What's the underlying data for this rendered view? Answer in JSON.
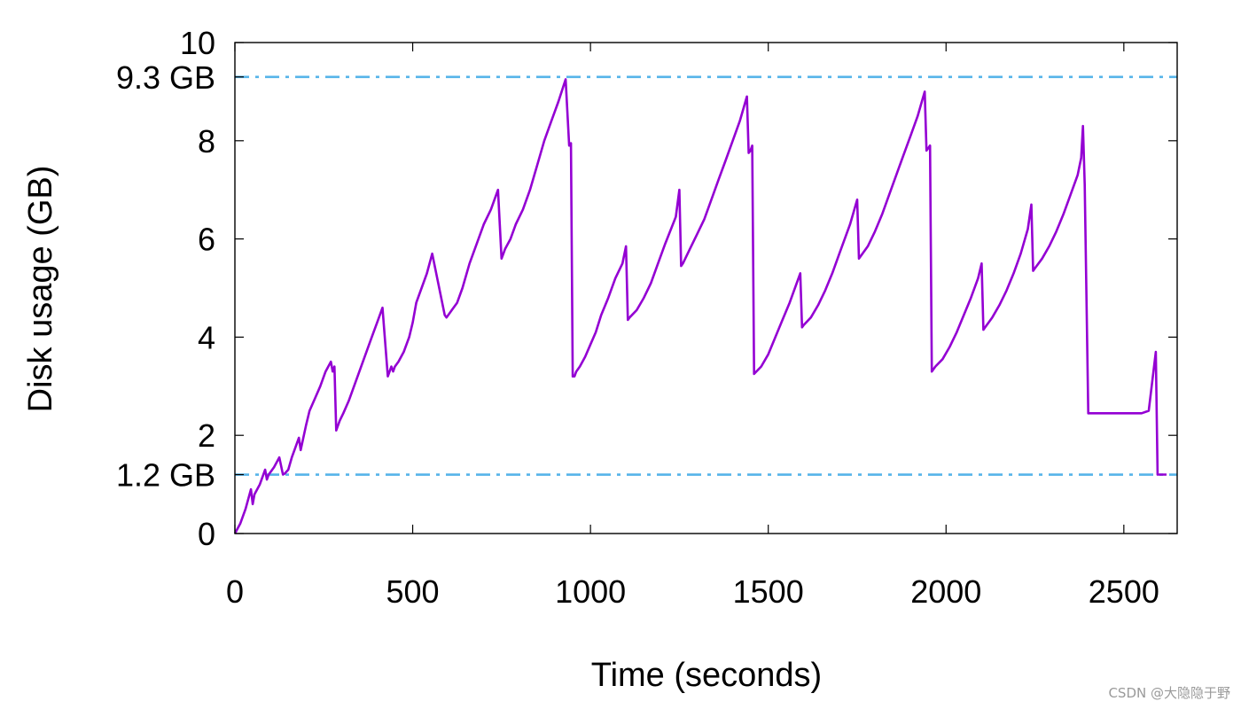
{
  "chart_data": {
    "type": "line",
    "xlabel": "Time (seconds)",
    "ylabel": "Disk usage (GB)",
    "xlim": [
      0,
      2650
    ],
    "ylim": [
      0,
      10
    ],
    "x_ticks": [
      0,
      500,
      1000,
      1500,
      2000,
      2500
    ],
    "y_ticks": [
      0,
      2,
      4,
      6,
      8,
      10
    ],
    "grid": false,
    "colors": {
      "series": "#9400d3",
      "reference_lines": "#56b4e9",
      "axis": "#000000"
    },
    "reference_lines": [
      {
        "label": "9.3 GB",
        "y": 9.3
      },
      {
        "label": "1.2 GB",
        "y": 1.2
      }
    ],
    "series": [
      {
        "x": [
          0,
          15,
          30,
          45,
          50,
          55,
          70,
          85,
          90,
          95,
          110,
          125,
          135,
          140,
          150,
          160,
          170,
          180,
          185,
          200,
          210,
          225,
          240,
          255,
          270,
          275,
          280,
          285,
          290,
          295,
          305,
          320,
          335,
          350,
          365,
          380,
          390,
          400,
          415,
          430,
          435,
          440,
          445,
          450,
          460,
          475,
          490,
          500,
          510,
          525,
          540,
          555,
          590,
          595,
          600,
          610,
          625,
          640,
          660,
          680,
          700,
          720,
          740,
          750,
          755,
          760,
          775,
          790,
          810,
          830,
          850,
          870,
          890,
          910,
          930,
          940,
          945,
          950,
          955,
          960,
          970,
          985,
          1000,
          1015,
          1030,
          1050,
          1070,
          1090,
          1100,
          1105,
          1110,
          1130,
          1150,
          1170,
          1190,
          1210,
          1240,
          1250,
          1255,
          1260,
          1280,
          1300,
          1320,
          1340,
          1360,
          1380,
          1400,
          1420,
          1440,
          1445,
          1450,
          1455,
          1460,
          1480,
          1500,
          1520,
          1540,
          1560,
          1590,
          1595,
          1600,
          1620,
          1640,
          1660,
          1680,
          1700,
          1730,
          1750,
          1755,
          1760,
          1780,
          1800,
          1820,
          1840,
          1860,
          1880,
          1900,
          1920,
          1940,
          1945,
          1950,
          1955,
          1960,
          1970,
          1990,
          2010,
          2030,
          2050,
          2070,
          2090,
          2100,
          2105,
          2110,
          2130,
          2150,
          2170,
          2190,
          2210,
          2230,
          2240,
          2245,
          2250,
          2270,
          2290,
          2310,
          2330,
          2350,
          2370,
          2380,
          2385,
          2390,
          2400,
          2450,
          2500,
          2550,
          2570,
          2590,
          2595,
          2600,
          2620
        ],
        "y": [
          0,
          0.2,
          0.5,
          0.9,
          0.6,
          0.8,
          1.0,
          1.3,
          1.1,
          1.2,
          1.35,
          1.55,
          1.2,
          1.22,
          1.3,
          1.55,
          1.75,
          1.95,
          1.7,
          2.2,
          2.5,
          2.75,
          3.0,
          3.3,
          3.5,
          3.3,
          3.4,
          2.1,
          2.2,
          2.3,
          2.45,
          2.7,
          3.0,
          3.3,
          3.6,
          3.9,
          4.1,
          4.3,
          4.6,
          3.2,
          3.3,
          3.4,
          3.3,
          3.4,
          3.5,
          3.7,
          4.0,
          4.3,
          4.7,
          5.0,
          5.3,
          5.7,
          4.45,
          4.4,
          4.45,
          4.55,
          4.7,
          5.0,
          5.5,
          5.9,
          6.3,
          6.6,
          7.0,
          5.6,
          5.7,
          5.8,
          6.0,
          6.3,
          6.6,
          7.0,
          7.5,
          8.0,
          8.4,
          8.8,
          9.25,
          7.9,
          7.95,
          3.2,
          3.2,
          3.3,
          3.4,
          3.6,
          3.85,
          4.1,
          4.45,
          4.8,
          5.2,
          5.5,
          5.85,
          4.35,
          4.4,
          4.55,
          4.8,
          5.1,
          5.5,
          5.9,
          6.45,
          7.0,
          5.45,
          5.5,
          5.8,
          6.1,
          6.4,
          6.8,
          7.2,
          7.6,
          8.0,
          8.4,
          8.9,
          7.75,
          7.8,
          7.9,
          3.25,
          3.4,
          3.65,
          4.0,
          4.35,
          4.7,
          5.3,
          4.2,
          4.25,
          4.4,
          4.65,
          4.95,
          5.3,
          5.7,
          6.3,
          6.8,
          5.6,
          5.65,
          5.85,
          6.15,
          6.5,
          6.9,
          7.3,
          7.7,
          8.1,
          8.5,
          9.0,
          7.8,
          7.85,
          7.9,
          3.3,
          3.4,
          3.55,
          3.8,
          4.1,
          4.45,
          4.8,
          5.2,
          5.5,
          4.15,
          4.2,
          4.4,
          4.65,
          4.95,
          5.3,
          5.7,
          6.2,
          6.7,
          5.35,
          5.4,
          5.6,
          5.85,
          6.15,
          6.5,
          6.9,
          7.3,
          7.65,
          8.3,
          7.1,
          2.45,
          2.45,
          2.45,
          2.45,
          2.5,
          3.7,
          1.2,
          1.2,
          1.2
        ]
      }
    ]
  },
  "watermark": "CSDN @大隐隐于野"
}
